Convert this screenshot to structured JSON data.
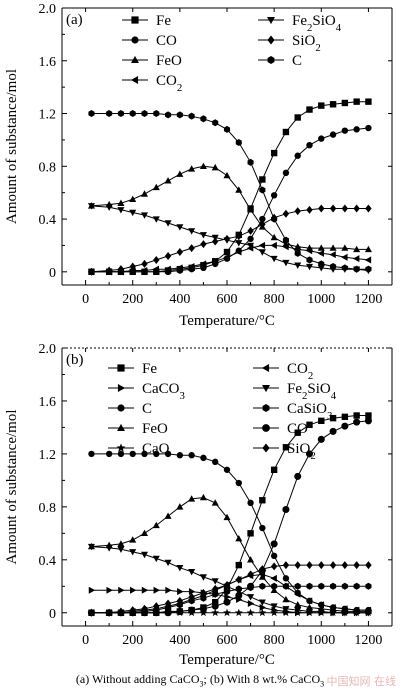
{
  "figure": {
    "caption": "(a) Without adding CaCO3; (b) With 8 wt.% CaCO3",
    "watermark": "中国知网 在线"
  },
  "chart_data": [
    {
      "panel_label": "(a)",
      "type": "line",
      "xlabel": "Temperature/°C",
      "ylabel": "Amount of substance/mol",
      "xlim": [
        -100,
        1300
      ],
      "ylim": [
        -0.1,
        2.0
      ],
      "xticks": [
        0,
        200,
        400,
        600,
        800,
        1000,
        1200
      ],
      "yticks": [
        0,
        0.4,
        0.8,
        1.2,
        1.6,
        2.0
      ],
      "x": [
        25,
        100,
        150,
        200,
        250,
        300,
        350,
        400,
        450,
        500,
        550,
        600,
        650,
        700,
        750,
        800,
        850,
        900,
        950,
        1000,
        1050,
        1100,
        1150,
        1200
      ],
      "legend": {
        "columns": [
          [
            "Fe",
            "CO",
            "FeO",
            "CO2"
          ],
          [
            "Fe2SiO4",
            "SiO2",
            "C"
          ]
        ]
      },
      "series": [
        {
          "name": "Fe",
          "marker": "square",
          "values": [
            0,
            0,
            0,
            0,
            0,
            0,
            0.01,
            0.02,
            0.03,
            0.05,
            0.08,
            0.15,
            0.28,
            0.48,
            0.7,
            0.9,
            1.06,
            1.17,
            1.23,
            1.26,
            1.27,
            1.28,
            1.29,
            1.29
          ]
        },
        {
          "name": "CO",
          "marker": "circle",
          "values": [
            0,
            0,
            0,
            0,
            0,
            0,
            0,
            0.01,
            0.02,
            0.03,
            0.06,
            0.1,
            0.16,
            0.25,
            0.4,
            0.58,
            0.75,
            0.88,
            0.96,
            1.01,
            1.04,
            1.07,
            1.08,
            1.09
          ]
        },
        {
          "name": "FeO",
          "marker": "triangle-up",
          "values": [
            0.5,
            0.51,
            0.52,
            0.55,
            0.59,
            0.64,
            0.69,
            0.74,
            0.78,
            0.8,
            0.79,
            0.73,
            0.62,
            0.47,
            0.34,
            0.26,
            0.21,
            0.19,
            0.18,
            0.18,
            0.18,
            0.18,
            0.17,
            0.17
          ]
        },
        {
          "name": "CO2",
          "marker": "triangle-left",
          "values": [
            0,
            0,
            0,
            0.01,
            0.01,
            0.02,
            0.02,
            0.03,
            0.04,
            0.06,
            0.08,
            0.11,
            0.15,
            0.18,
            0.2,
            0.2,
            0.19,
            0.17,
            0.16,
            0.14,
            0.13,
            0.11,
            0.1,
            0.09
          ]
        },
        {
          "name": "Fe2SiO4",
          "marker": "triangle-down",
          "values": [
            0.5,
            0.49,
            0.47,
            0.45,
            0.43,
            0.4,
            0.37,
            0.34,
            0.31,
            0.28,
            0.26,
            0.24,
            0.22,
            0.2,
            0.15,
            0.1,
            0.07,
            0.05,
            0.04,
            0.03,
            0.02,
            0.02,
            0.02,
            0.01
          ]
        },
        {
          "name": "SiO2",
          "marker": "diamond",
          "values": [
            0,
            0.01,
            0.02,
            0.04,
            0.06,
            0.09,
            0.12,
            0.15,
            0.18,
            0.21,
            0.23,
            0.25,
            0.27,
            0.31,
            0.36,
            0.41,
            0.44,
            0.46,
            0.47,
            0.48,
            0.48,
            0.48,
            0.48,
            0.48
          ]
        },
        {
          "name": "C",
          "marker": "hexagon",
          "values": [
            1.2,
            1.2,
            1.2,
            1.2,
            1.2,
            1.2,
            1.19,
            1.19,
            1.18,
            1.16,
            1.13,
            1.08,
            0.98,
            0.83,
            0.62,
            0.4,
            0.24,
            0.14,
            0.09,
            0.06,
            0.04,
            0.03,
            0.02,
            0.02
          ]
        }
      ]
    },
    {
      "panel_label": "(b)",
      "type": "line",
      "xlabel": "Temperature/°C",
      "ylabel": "Amount of substance/mol",
      "xlim": [
        -100,
        1300
      ],
      "ylim": [
        -0.1,
        2.0
      ],
      "xticks": [
        0,
        200,
        400,
        600,
        800,
        1000,
        1200
      ],
      "yticks": [
        0,
        0.4,
        0.8,
        1.2,
        1.6,
        2.0
      ],
      "x": [
        25,
        100,
        150,
        200,
        250,
        300,
        350,
        400,
        450,
        500,
        550,
        600,
        650,
        700,
        750,
        800,
        850,
        900,
        950,
        1000,
        1050,
        1100,
        1150,
        1200
      ],
      "legend": {
        "columns": [
          [
            "Fe",
            "CaCO3",
            "C",
            "FeO",
            "CaO"
          ],
          [
            "CO2",
            "Fe2SiO4",
            "CaSiO3",
            "CO",
            "SiO2"
          ]
        ]
      },
      "series": [
        {
          "name": "Fe",
          "marker": "square",
          "values": [
            0,
            0,
            0,
            0,
            0,
            0,
            0.01,
            0.01,
            0.02,
            0.04,
            0.08,
            0.18,
            0.36,
            0.6,
            0.85,
            1.08,
            1.25,
            1.36,
            1.42,
            1.45,
            1.47,
            1.48,
            1.49,
            1.49
          ]
        },
        {
          "name": "CaCO3",
          "marker": "triangle-right",
          "values": [
            0.17,
            0.17,
            0.17,
            0.17,
            0.17,
            0.17,
            0.17,
            0.16,
            0.16,
            0.15,
            0.14,
            0.12,
            0.1,
            0.07,
            0.04,
            0.02,
            0.01,
            0,
            0,
            0,
            0,
            0,
            0,
            0
          ]
        },
        {
          "name": "C",
          "marker": "circle",
          "values": [
            1.2,
            1.2,
            1.2,
            1.2,
            1.2,
            1.2,
            1.2,
            1.19,
            1.19,
            1.17,
            1.14,
            1.08,
            0.98,
            0.83,
            0.64,
            0.43,
            0.26,
            0.15,
            0.09,
            0.06,
            0.04,
            0.03,
            0.02,
            0.02
          ]
        },
        {
          "name": "FeO",
          "marker": "triangle-up",
          "values": [
            0.5,
            0.51,
            0.52,
            0.55,
            0.6,
            0.66,
            0.73,
            0.8,
            0.86,
            0.87,
            0.83,
            0.72,
            0.56,
            0.4,
            0.27,
            0.17,
            0.1,
            0.06,
            0.04,
            0.03,
            0.02,
            0.01,
            0.01,
            0.01
          ]
        },
        {
          "name": "CaO",
          "marker": "star",
          "values": [
            0,
            0,
            0,
            0,
            0,
            0,
            0,
            0,
            0,
            0,
            0,
            0,
            0,
            0,
            0,
            0,
            0,
            0,
            0,
            0,
            0,
            0,
            0,
            0
          ]
        },
        {
          "name": "CO2",
          "marker": "triangle-left",
          "values": [
            0,
            0,
            0,
            0.01,
            0.02,
            0.03,
            0.05,
            0.07,
            0.1,
            0.13,
            0.17,
            0.21,
            0.25,
            0.28,
            0.29,
            0.26,
            0.2,
            0.14,
            0.09,
            0.06,
            0.04,
            0.03,
            0.02,
            0.02
          ]
        },
        {
          "name": "Fe2SiO4",
          "marker": "triangle-down",
          "values": [
            0.5,
            0.49,
            0.48,
            0.46,
            0.44,
            0.41,
            0.38,
            0.34,
            0.31,
            0.27,
            0.24,
            0.2,
            0.16,
            0.12,
            0.08,
            0.05,
            0.03,
            0.02,
            0.01,
            0.01,
            0,
            0,
            0,
            0
          ]
        },
        {
          "name": "CaSiO3",
          "marker": "hexagon",
          "values": [
            0,
            0,
            0,
            0,
            0.01,
            0.02,
            0.04,
            0.06,
            0.09,
            0.11,
            0.14,
            0.16,
            0.18,
            0.19,
            0.2,
            0.2,
            0.2,
            0.2,
            0.2,
            0.2,
            0.2,
            0.2,
            0.2,
            0.2
          ]
        },
        {
          "name": "CO",
          "marker": "circle-open",
          "values": [
            0,
            0,
            0,
            0,
            0,
            0,
            0,
            0.01,
            0.02,
            0.03,
            0.05,
            0.08,
            0.13,
            0.2,
            0.32,
            0.52,
            0.78,
            1.03,
            1.2,
            1.31,
            1.37,
            1.41,
            1.44,
            1.45
          ]
        },
        {
          "name": "SiO2",
          "marker": "diamond",
          "values": [
            0,
            0,
            0.01,
            0.02,
            0.03,
            0.05,
            0.07,
            0.09,
            0.12,
            0.15,
            0.18,
            0.21,
            0.25,
            0.29,
            0.33,
            0.35,
            0.36,
            0.36,
            0.36,
            0.36,
            0.36,
            0.36,
            0.36,
            0.36
          ]
        }
      ]
    }
  ]
}
